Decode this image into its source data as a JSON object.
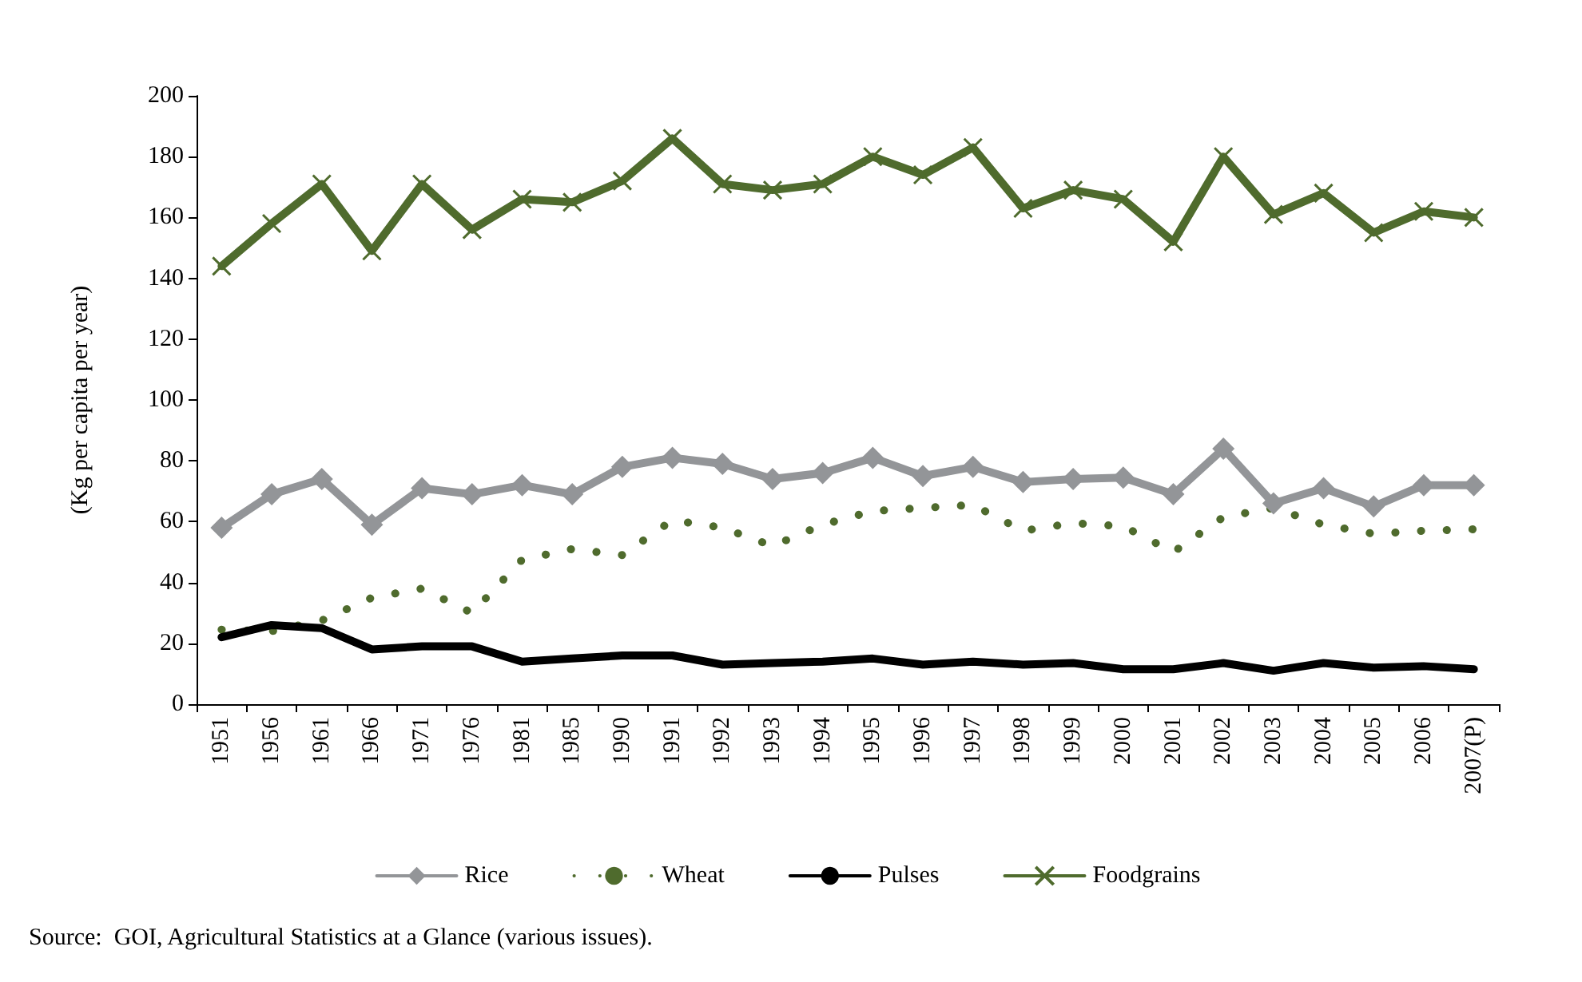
{
  "chart_data": {
    "type": "line",
    "ylabel": "(Kg per capita per year)",
    "categories": [
      "1951",
      "1956",
      "1961",
      "1966",
      "1971",
      "1976",
      "1981",
      "1985",
      "1990",
      "1991",
      "1992",
      "1993",
      "1994",
      "1995",
      "1996",
      "1997",
      "1998",
      "1999",
      "2000",
      "2001",
      "2002",
      "2003",
      "2004",
      "2005",
      "2006",
      "2007(P)"
    ],
    "series": [
      {
        "name": "Rice",
        "color": "#939598",
        "marker": "diamond",
        "line_style": "solid",
        "values": [
          58,
          69,
          74,
          59,
          71,
          69,
          72,
          69,
          78,
          81,
          79,
          74,
          76,
          81,
          75,
          78,
          73,
          74,
          74.5,
          69,
          84,
          66,
          71,
          65,
          72,
          72
        ]
      },
      {
        "name": "Wheat",
        "color": "#4f6b2d",
        "marker": "none",
        "line_style": "dotted",
        "values": [
          24.5,
          24,
          27.5,
          35,
          38,
          30,
          47.5,
          51,
          49,
          60.5,
          58,
          52,
          59,
          63.5,
          64.5,
          65.5,
          57,
          59.5,
          58.5,
          50,
          61.5,
          64.5,
          59,
          56,
          57,
          57.5
        ]
      },
      {
        "name": "Pulses",
        "color": "#000000",
        "marker": "none",
        "line_style": "solid",
        "values": [
          22,
          26,
          25,
          18,
          19,
          19,
          14,
          15,
          16,
          16,
          13,
          13.5,
          14,
          15,
          13,
          14,
          13,
          13.5,
          11.5,
          11.5,
          13.5,
          11,
          13.5,
          12,
          12.5,
          11.5
        ]
      },
      {
        "name": "Foodgrains",
        "color": "#4f6b2d",
        "marker": "cross",
        "line_style": "solid",
        "values": [
          144,
          158,
          171,
          149,
          171,
          156,
          166,
          165,
          172,
          186,
          171,
          169,
          171,
          180,
          174,
          183,
          163,
          169,
          166,
          152,
          180,
          161,
          168,
          155,
          162,
          160
        ]
      }
    ],
    "ylim": [
      0,
      200
    ],
    "yticks": [
      0,
      20,
      40,
      60,
      80,
      100,
      120,
      140,
      160,
      180,
      200
    ],
    "grid": false,
    "legend": "bottom",
    "annotations": [
      "Source:  GOI, Agricultural Statistics at a Glance (various issues)."
    ]
  }
}
